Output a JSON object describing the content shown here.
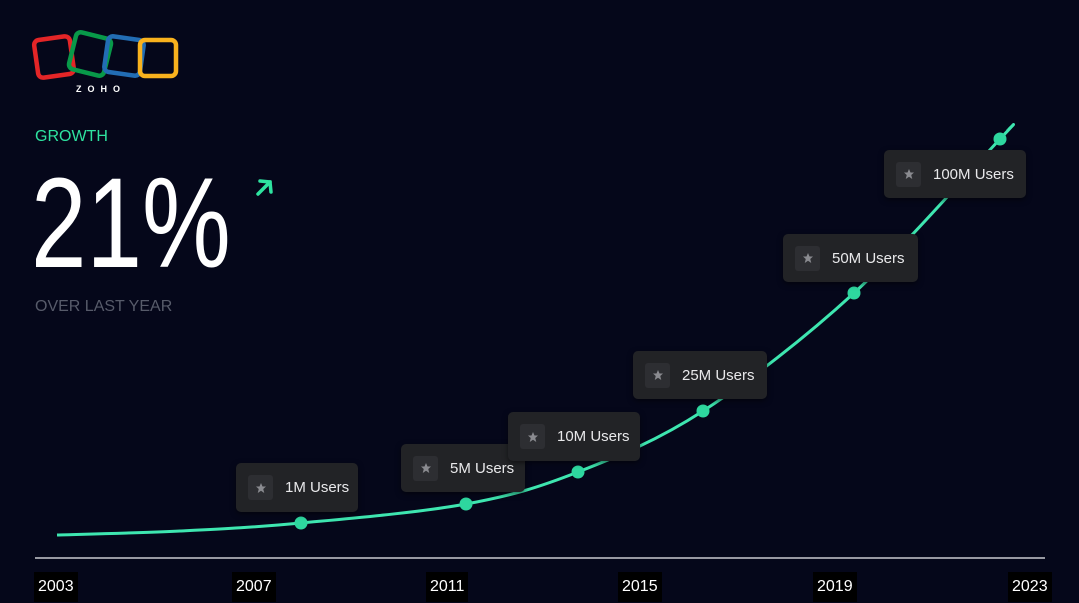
{
  "logo": {
    "text": "ZOHO"
  },
  "headline": {
    "label": "GROWTH",
    "value": "21%",
    "caption": "OVER LAST YEAR"
  },
  "milestones": [
    "1M Users",
    "5M Users",
    "10M Users",
    "25M Users",
    "50M Users",
    "100M Users"
  ],
  "years": [
    "2003",
    "2007",
    "2011",
    "2015",
    "2019",
    "2023"
  ]
}
